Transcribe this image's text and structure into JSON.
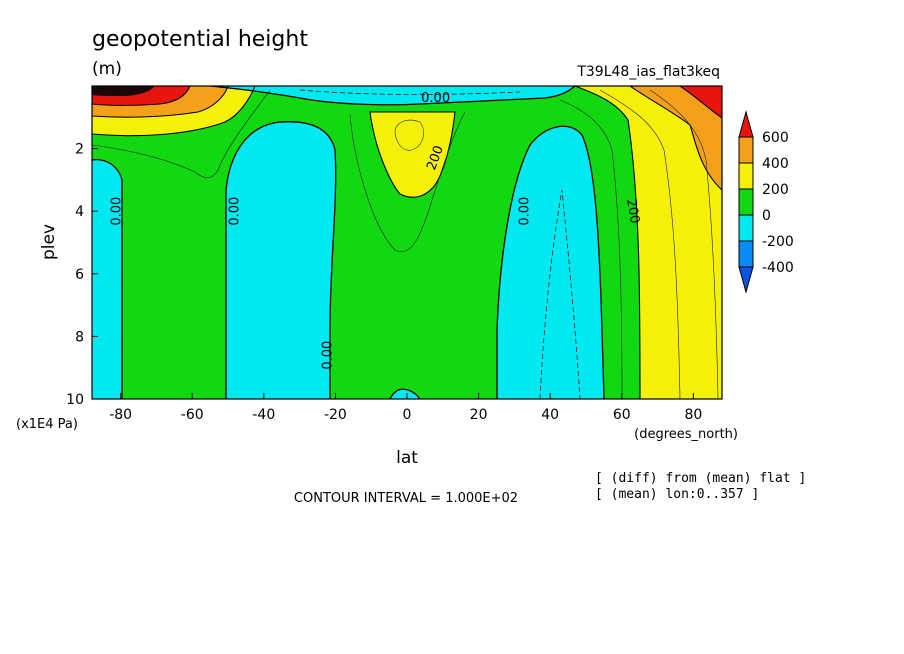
{
  "chart_data": {
    "type": "contour",
    "title": "geopotential height",
    "units": "(m)",
    "experiment": "T39L48_ias_flat3keq",
    "xlabel": "lat",
    "xunits": "(degrees_north)",
    "ylabel": "plev",
    "yunits": "(x1E4 Pa)",
    "xlim": [
      -88,
      88
    ],
    "ylim": [
      10,
      0
    ],
    "x_ticks": [
      -80,
      -60,
      -40,
      -20,
      0,
      20,
      40,
      60,
      80
    ],
    "y_ticks": [
      2,
      4,
      6,
      8,
      10
    ],
    "contour_interval_text": "CONTOUR INTERVAL = 1.000E+02",
    "notes": [
      "[ (diff) from (mean) flat ]",
      "[ (mean) lon:0..357 ]"
    ],
    "colorbar": {
      "levels": [
        "600",
        "400",
        "200",
        "0",
        "-200",
        "-400"
      ],
      "colors": [
        "#e8150e",
        "#f5a01a",
        "#f5f00a",
        "#12d812",
        "#00e8f0",
        "#0a8cf5",
        "#0a55e6"
      ]
    },
    "contour_labels": [
      {
        "text": "0.00",
        "lat": -81,
        "plev": 4.0,
        "rotate": -90
      },
      {
        "text": "0.00",
        "lat": -48,
        "plev": 4.0,
        "rotate": -90
      },
      {
        "text": "0.00",
        "lat": -22,
        "plev": 8.6,
        "rotate": -90
      },
      {
        "text": "0.00",
        "lat": 8,
        "plev": 0.4,
        "rotate": 0
      },
      {
        "text": "200",
        "lat": 8,
        "plev": 2.3,
        "rotate": -70
      },
      {
        "text": "0.00",
        "lat": 33,
        "plev": 4.0,
        "rotate": -90
      },
      {
        "text": "200",
        "lat": 63,
        "plev": 4.0,
        "rotate": 80
      }
    ]
  }
}
